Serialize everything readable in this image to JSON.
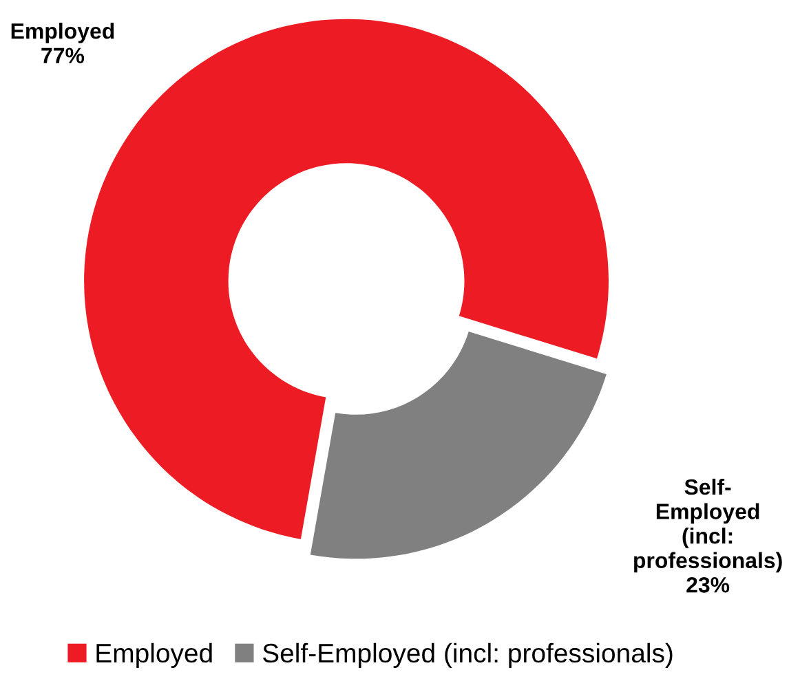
{
  "chart_data": {
    "type": "donut",
    "categories": [
      "Employed",
      "Self-Employed (incl: professionals)"
    ],
    "values": [
      77,
      23
    ],
    "colors": [
      "#ed1c24",
      "#808080"
    ],
    "value_labels": [
      "77%",
      "23%"
    ],
    "legend": "bottom"
  }
}
